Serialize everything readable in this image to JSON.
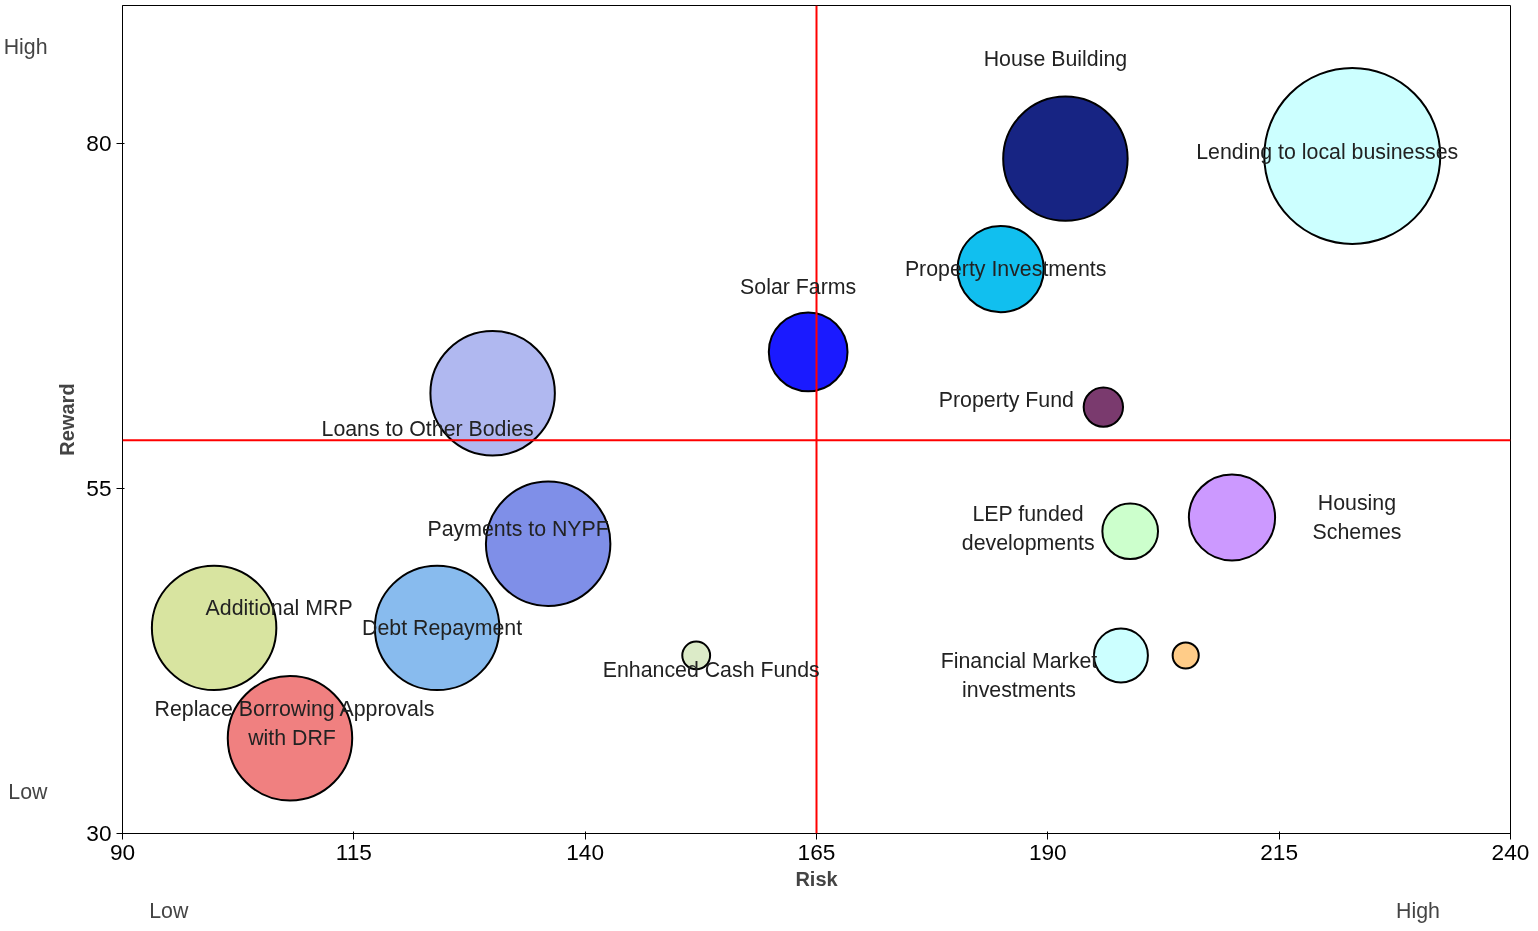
{
  "chart_data": {
    "type": "bubble",
    "xlabel": "Risk",
    "ylabel": "Reward",
    "xlim": [
      90,
      240
    ],
    "xticks": [
      90,
      115,
      140,
      165,
      190,
      215,
      240
    ],
    "ylim": [
      30,
      90
    ],
    "yticks": [
      30,
      55,
      80
    ],
    "grid": false,
    "legend": false,
    "annotations": [
      "High",
      "Low",
      "Low",
      "High"
    ],
    "ref_lines": [
      {
        "axis": "x",
        "value": 165,
        "color": "#ff0000"
      },
      {
        "axis": "y",
        "value": 58.5,
        "color": "#ff0000"
      }
    ],
    "series": [
      {
        "name": "Lending to local businesses",
        "color": "#ccffff",
        "x": [
          222.9
        ],
        "values": [
          79.1
        ],
        "sizes": [
          1
        ]
      },
      {
        "name": "House Building",
        "color": "#172483",
        "x": [
          191.9
        ],
        "values": [
          78.9
        ],
        "sizes": [
          0.5
        ]
      },
      {
        "name": "Property Investments",
        "color": "#11bfef",
        "x": [
          184.9
        ],
        "values": [
          70.9
        ],
        "sizes": [
          0.24
        ]
      },
      {
        "name": "Solar Farms",
        "color": "#1a1aff",
        "x": [
          164.1
        ],
        "values": [
          64.9
        ],
        "sizes": [
          0.2
        ]
      },
      {
        "name": "Property Fund",
        "color": "#7a3a6e",
        "x": [
          196
        ],
        "values": [
          60.9
        ],
        "sizes": [
          0.05
        ]
      },
      {
        "name": "Loans to Other Bodies",
        "color": "#b0b8f0",
        "x": [
          130
        ],
        "values": [
          61.9
        ],
        "sizes": [
          0.5
        ]
      },
      {
        "name": "Payments to NYPF",
        "color": "#7f8fe8",
        "x": [
          136
        ],
        "values": [
          51
        ],
        "sizes": [
          0.5
        ]
      },
      {
        "name": "Additional MRP",
        "color": "#d8e4a0",
        "x": [
          99.9
        ],
        "values": [
          44.9
        ],
        "sizes": [
          0.5
        ]
      },
      {
        "name": "Debt Repayment",
        "color": "#88bbee",
        "x": [
          124
        ],
        "values": [
          44.9
        ],
        "sizes": [
          0.5
        ]
      },
      {
        "name": "Replace Borrowing Approvals\nwith  DRF",
        "color": "#f08080",
        "x": [
          108.1
        ],
        "values": [
          36.9
        ],
        "sizes": [
          0.5
        ]
      },
      {
        "name": "Enhanced Cash Funds",
        "color": "#dcebc8",
        "x": [
          152
        ],
        "values": [
          42.9
        ],
        "sizes": [
          0.025
        ]
      },
      {
        "name": "LEP funded\ndevelopments",
        "color": "#ccffcc",
        "x": [
          198.9
        ],
        "values": [
          51.9
        ],
        "sizes": [
          0.1
        ]
      },
      {
        "name": "Housing\nSchemes",
        "color": "#cc99ff",
        "x": [
          209.9
        ],
        "values": [
          52.9
        ],
        "sizes": [
          0.24
        ]
      },
      {
        "name": "Financial Market\ninvestments",
        "color": "#ccffff",
        "x": [
          197.9
        ],
        "values": [
          42.9
        ],
        "sizes": [
          0.094
        ]
      },
      {
        "color": "#ffcc88",
        "x": [
          204.9
        ],
        "values": [
          42.9
        ],
        "sizes": [
          0.022
        ]
      }
    ]
  }
}
